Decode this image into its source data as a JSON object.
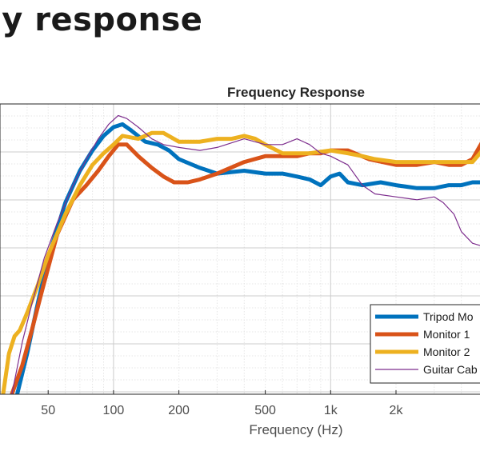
{
  "page": {
    "heading": "cy response"
  },
  "chart_data": {
    "type": "line",
    "title": "Frequency Response",
    "xlabel": "Frequency (Hz)",
    "ylabel": "",
    "x_scale": "log",
    "xlim": [
      30,
      5000
    ],
    "ylim": [
      0,
      100
    ],
    "grid": true,
    "minor_grid": true,
    "legend_position": "bottom-right",
    "x_ticks": [
      {
        "value": 50,
        "label": "50"
      },
      {
        "value": 100,
        "label": "100"
      },
      {
        "value": 200,
        "label": "200"
      },
      {
        "value": 500,
        "label": "500"
      },
      {
        "value": 1000,
        "label": "1k"
      },
      {
        "value": 2000,
        "label": "2k"
      }
    ],
    "series": [
      {
        "name": "Tripod Mo",
        "color": "#0072BD",
        "line_weight": "thick",
        "points": [
          [
            36,
            0
          ],
          [
            40,
            14
          ],
          [
            45,
            32
          ],
          [
            50,
            47
          ],
          [
            60,
            66
          ],
          [
            70,
            77
          ],
          [
            80,
            84
          ],
          [
            90,
            89
          ],
          [
            100,
            92
          ],
          [
            110,
            93
          ],
          [
            120,
            91
          ],
          [
            140,
            87
          ],
          [
            160,
            86
          ],
          [
            180,
            84
          ],
          [
            200,
            81
          ],
          [
            250,
            78
          ],
          [
            300,
            76
          ],
          [
            400,
            77
          ],
          [
            500,
            76
          ],
          [
            600,
            76
          ],
          [
            700,
            75
          ],
          [
            800,
            74
          ],
          [
            900,
            72
          ],
          [
            1000,
            75
          ],
          [
            1100,
            76
          ],
          [
            1200,
            73
          ],
          [
            1400,
            72
          ],
          [
            1700,
            73
          ],
          [
            2000,
            72
          ],
          [
            2500,
            71
          ],
          [
            3000,
            71
          ],
          [
            3500,
            72
          ],
          [
            4000,
            72
          ],
          [
            4500,
            73
          ],
          [
            5000,
            73
          ]
        ]
      },
      {
        "name": "Monitor 1",
        "color": "#D95319",
        "line_weight": "thick",
        "points": [
          [
            34,
            0
          ],
          [
            38,
            10
          ],
          [
            42,
            22
          ],
          [
            47,
            36
          ],
          [
            55,
            55
          ],
          [
            65,
            67
          ],
          [
            75,
            72
          ],
          [
            85,
            77
          ],
          [
            95,
            82
          ],
          [
            105,
            86
          ],
          [
            115,
            86
          ],
          [
            130,
            82
          ],
          [
            150,
            78
          ],
          [
            170,
            75
          ],
          [
            190,
            73
          ],
          [
            220,
            73
          ],
          [
            250,
            74
          ],
          [
            300,
            76
          ],
          [
            400,
            80
          ],
          [
            500,
            82
          ],
          [
            600,
            82
          ],
          [
            700,
            82
          ],
          [
            800,
            83
          ],
          [
            900,
            83
          ],
          [
            1000,
            84
          ],
          [
            1200,
            84
          ],
          [
            1500,
            81
          ],
          [
            2000,
            79
          ],
          [
            2500,
            79
          ],
          [
            3000,
            80
          ],
          [
            3500,
            79
          ],
          [
            4000,
            79
          ],
          [
            4500,
            81
          ],
          [
            5000,
            87
          ]
        ]
      },
      {
        "name": "Monitor 2",
        "color": "#EDB120",
        "line_weight": "thick",
        "points": [
          [
            31,
            0
          ],
          [
            33,
            14
          ],
          [
            35,
            20
          ],
          [
            37,
            22
          ],
          [
            40,
            28
          ],
          [
            45,
            38
          ],
          [
            50,
            48
          ],
          [
            60,
            62
          ],
          [
            70,
            72
          ],
          [
            80,
            79
          ],
          [
            90,
            83
          ],
          [
            100,
            86
          ],
          [
            110,
            89
          ],
          [
            130,
            88
          ],
          [
            150,
            90
          ],
          [
            170,
            90
          ],
          [
            200,
            87
          ],
          [
            250,
            87
          ],
          [
            300,
            88
          ],
          [
            350,
            88
          ],
          [
            400,
            89
          ],
          [
            450,
            88
          ],
          [
            500,
            86
          ],
          [
            600,
            83
          ],
          [
            800,
            83
          ],
          [
            1000,
            84
          ],
          [
            1200,
            83
          ],
          [
            1400,
            82
          ],
          [
            1600,
            81
          ],
          [
            2000,
            80
          ],
          [
            2500,
            80
          ],
          [
            3000,
            80
          ],
          [
            3500,
            80
          ],
          [
            4000,
            80
          ],
          [
            4500,
            80
          ],
          [
            5000,
            84
          ]
        ]
      },
      {
        "name": "Guitar Cab",
        "color": "#7E2F8E",
        "line_weight": "thin",
        "points": [
          [
            34,
            0
          ],
          [
            38,
            18
          ],
          [
            42,
            31
          ],
          [
            48,
            47
          ],
          [
            55,
            59
          ],
          [
            65,
            72
          ],
          [
            75,
            81
          ],
          [
            85,
            88
          ],
          [
            95,
            93
          ],
          [
            105,
            96
          ],
          [
            115,
            95
          ],
          [
            130,
            92
          ],
          [
            150,
            88
          ],
          [
            170,
            86
          ],
          [
            200,
            85
          ],
          [
            250,
            84
          ],
          [
            300,
            85
          ],
          [
            400,
            88
          ],
          [
            500,
            86
          ],
          [
            600,
            86
          ],
          [
            700,
            88
          ],
          [
            800,
            86
          ],
          [
            900,
            83
          ],
          [
            1000,
            82
          ],
          [
            1200,
            79
          ],
          [
            1400,
            72
          ],
          [
            1600,
            69
          ],
          [
            2000,
            68
          ],
          [
            2500,
            67
          ],
          [
            3000,
            68
          ],
          [
            3300,
            66
          ],
          [
            3700,
            62
          ],
          [
            4000,
            56
          ],
          [
            4500,
            52
          ],
          [
            5000,
            51
          ]
        ]
      }
    ]
  }
}
